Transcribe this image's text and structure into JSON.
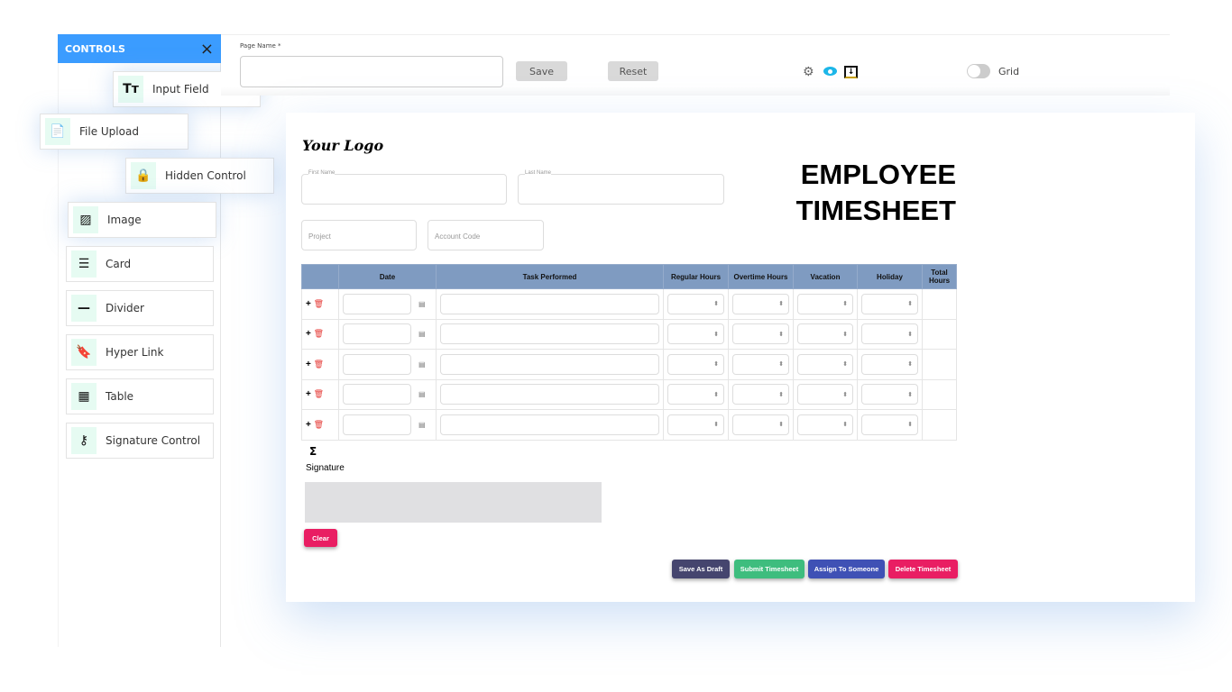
{
  "sidebar": {
    "title": "CONTROLS",
    "close": "×",
    "items": [
      {
        "label": "Input Field",
        "icon": "Tт"
      },
      {
        "label": "File Upload",
        "icon": "📄"
      },
      {
        "label": "Hidden Control",
        "icon": "🔒"
      },
      {
        "label": "Image",
        "icon": "▨"
      },
      {
        "label": "Card",
        "icon": "☰"
      },
      {
        "label": "Divider",
        "icon": "—"
      },
      {
        "label": "Hyper Link",
        "icon": "🔖"
      },
      {
        "label": "Table",
        "icon": "▦"
      },
      {
        "label": "Signature Control",
        "icon": "⚷"
      }
    ]
  },
  "topbar": {
    "page_name_label": "Page Name *",
    "page_name_value": "",
    "save": "Save",
    "reset": "Reset",
    "grid_label": "Grid",
    "grid_on": false
  },
  "form": {
    "logo": "Your Logo",
    "title_line1": "EMPLOYEE",
    "title_line2": "TIMESHEET",
    "first_name": "First Name",
    "last_name": "Last Name",
    "project": "Project",
    "account_code": "Account Code",
    "columns": [
      "",
      "Date",
      "Task Performed",
      "Regular Hours",
      "Overtime Hours",
      "Vacation",
      "Holiday",
      "Total Hours"
    ],
    "row_count": 5,
    "sum_symbol": "Σ",
    "signature_label": "Signature",
    "clear": "Clear",
    "buttons": {
      "draft": "Save As Draft",
      "submit": "Submit Timesheet",
      "assign": "Assign To Someone",
      "delete": "Delete Timesheet"
    }
  },
  "colors": {
    "accent": "#3b9cff",
    "table_header": "#7f9bc1",
    "draft": "#45456e",
    "submit": "#3ebd7e",
    "assign": "#3f51b5",
    "delete": "#e91e63"
  }
}
